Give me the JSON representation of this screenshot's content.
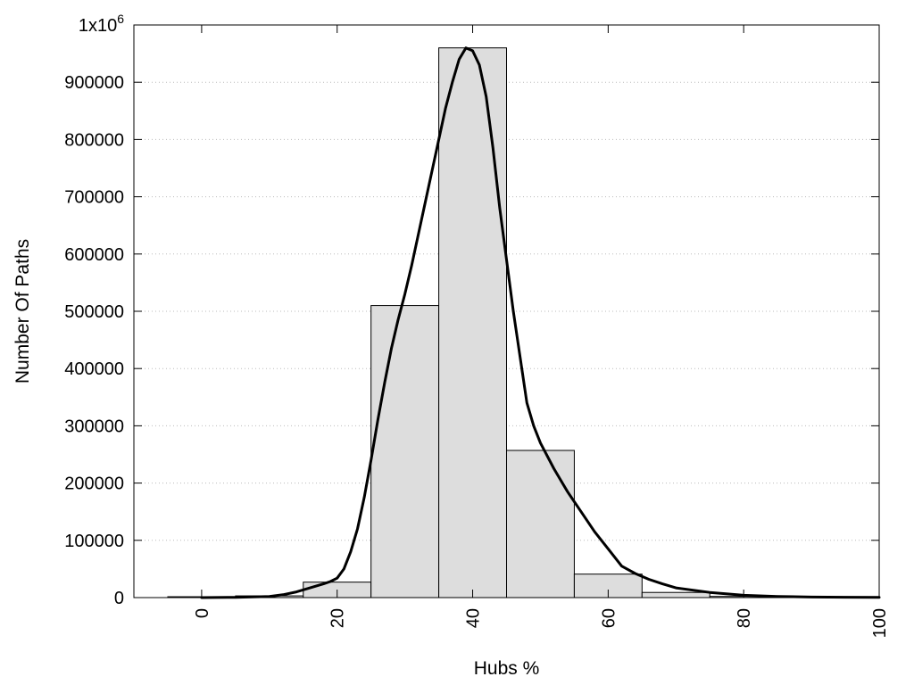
{
  "chart_data": {
    "type": "bar",
    "xlabel": "Hubs %",
    "ylabel": "Number Of Paths",
    "xlim": [
      -10,
      100
    ],
    "ylim": [
      0,
      1000000
    ],
    "x_ticks": [
      0,
      20,
      40,
      60,
      80,
      100
    ],
    "x_tick_labels": [
      "0",
      "20",
      "40",
      "60",
      "80",
      "100"
    ],
    "y_ticks": [
      0,
      100000,
      200000,
      300000,
      400000,
      500000,
      600000,
      700000,
      800000,
      900000
    ],
    "y_tick_labels": [
      "0",
      "100000",
      "200000",
      "300000",
      "400000",
      "500000",
      "600000",
      "700000",
      "800000",
      "900000"
    ],
    "y_top_label": {
      "base": "1x10",
      "exponent": "6"
    },
    "grid": {
      "y": true,
      "x": false,
      "style": "dotted"
    },
    "bars": {
      "bin_width": 10,
      "centers": [
        0,
        10,
        20,
        30,
        40,
        50,
        60,
        70,
        80,
        90
      ],
      "values": [
        1500,
        3000,
        27000,
        510000,
        960000,
        257000,
        41000,
        9000,
        2000,
        500
      ],
      "fill": "#dddddd",
      "stroke": "#000000"
    },
    "curve": {
      "x": [
        0,
        5,
        10,
        12,
        14,
        16,
        18,
        19,
        20,
        21,
        22,
        23,
        24,
        25,
        26,
        27,
        28,
        29,
        30,
        31,
        32,
        33,
        34,
        35,
        36,
        37,
        38,
        39,
        40,
        41,
        42,
        43,
        44,
        45,
        46,
        47,
        48,
        49,
        50,
        52,
        54,
        56,
        58,
        60,
        62,
        64,
        66,
        68,
        70,
        75,
        80,
        85,
        90,
        95,
        100
      ],
      "y": [
        0,
        500,
        2000,
        5000,
        10000,
        17000,
        24000,
        28000,
        34000,
        50000,
        80000,
        120000,
        175000,
        240000,
        310000,
        375000,
        435000,
        485000,
        530000,
        580000,
        635000,
        690000,
        745000,
        800000,
        855000,
        900000,
        940000,
        960000,
        955000,
        930000,
        875000,
        785000,
        680000,
        590000,
        500000,
        420000,
        340000,
        300000,
        270000,
        225000,
        185000,
        150000,
        115000,
        85000,
        55000,
        42000,
        32000,
        24000,
        17000,
        9000,
        4000,
        2000,
        1000,
        600,
        400
      ],
      "stroke": "#000000"
    }
  }
}
